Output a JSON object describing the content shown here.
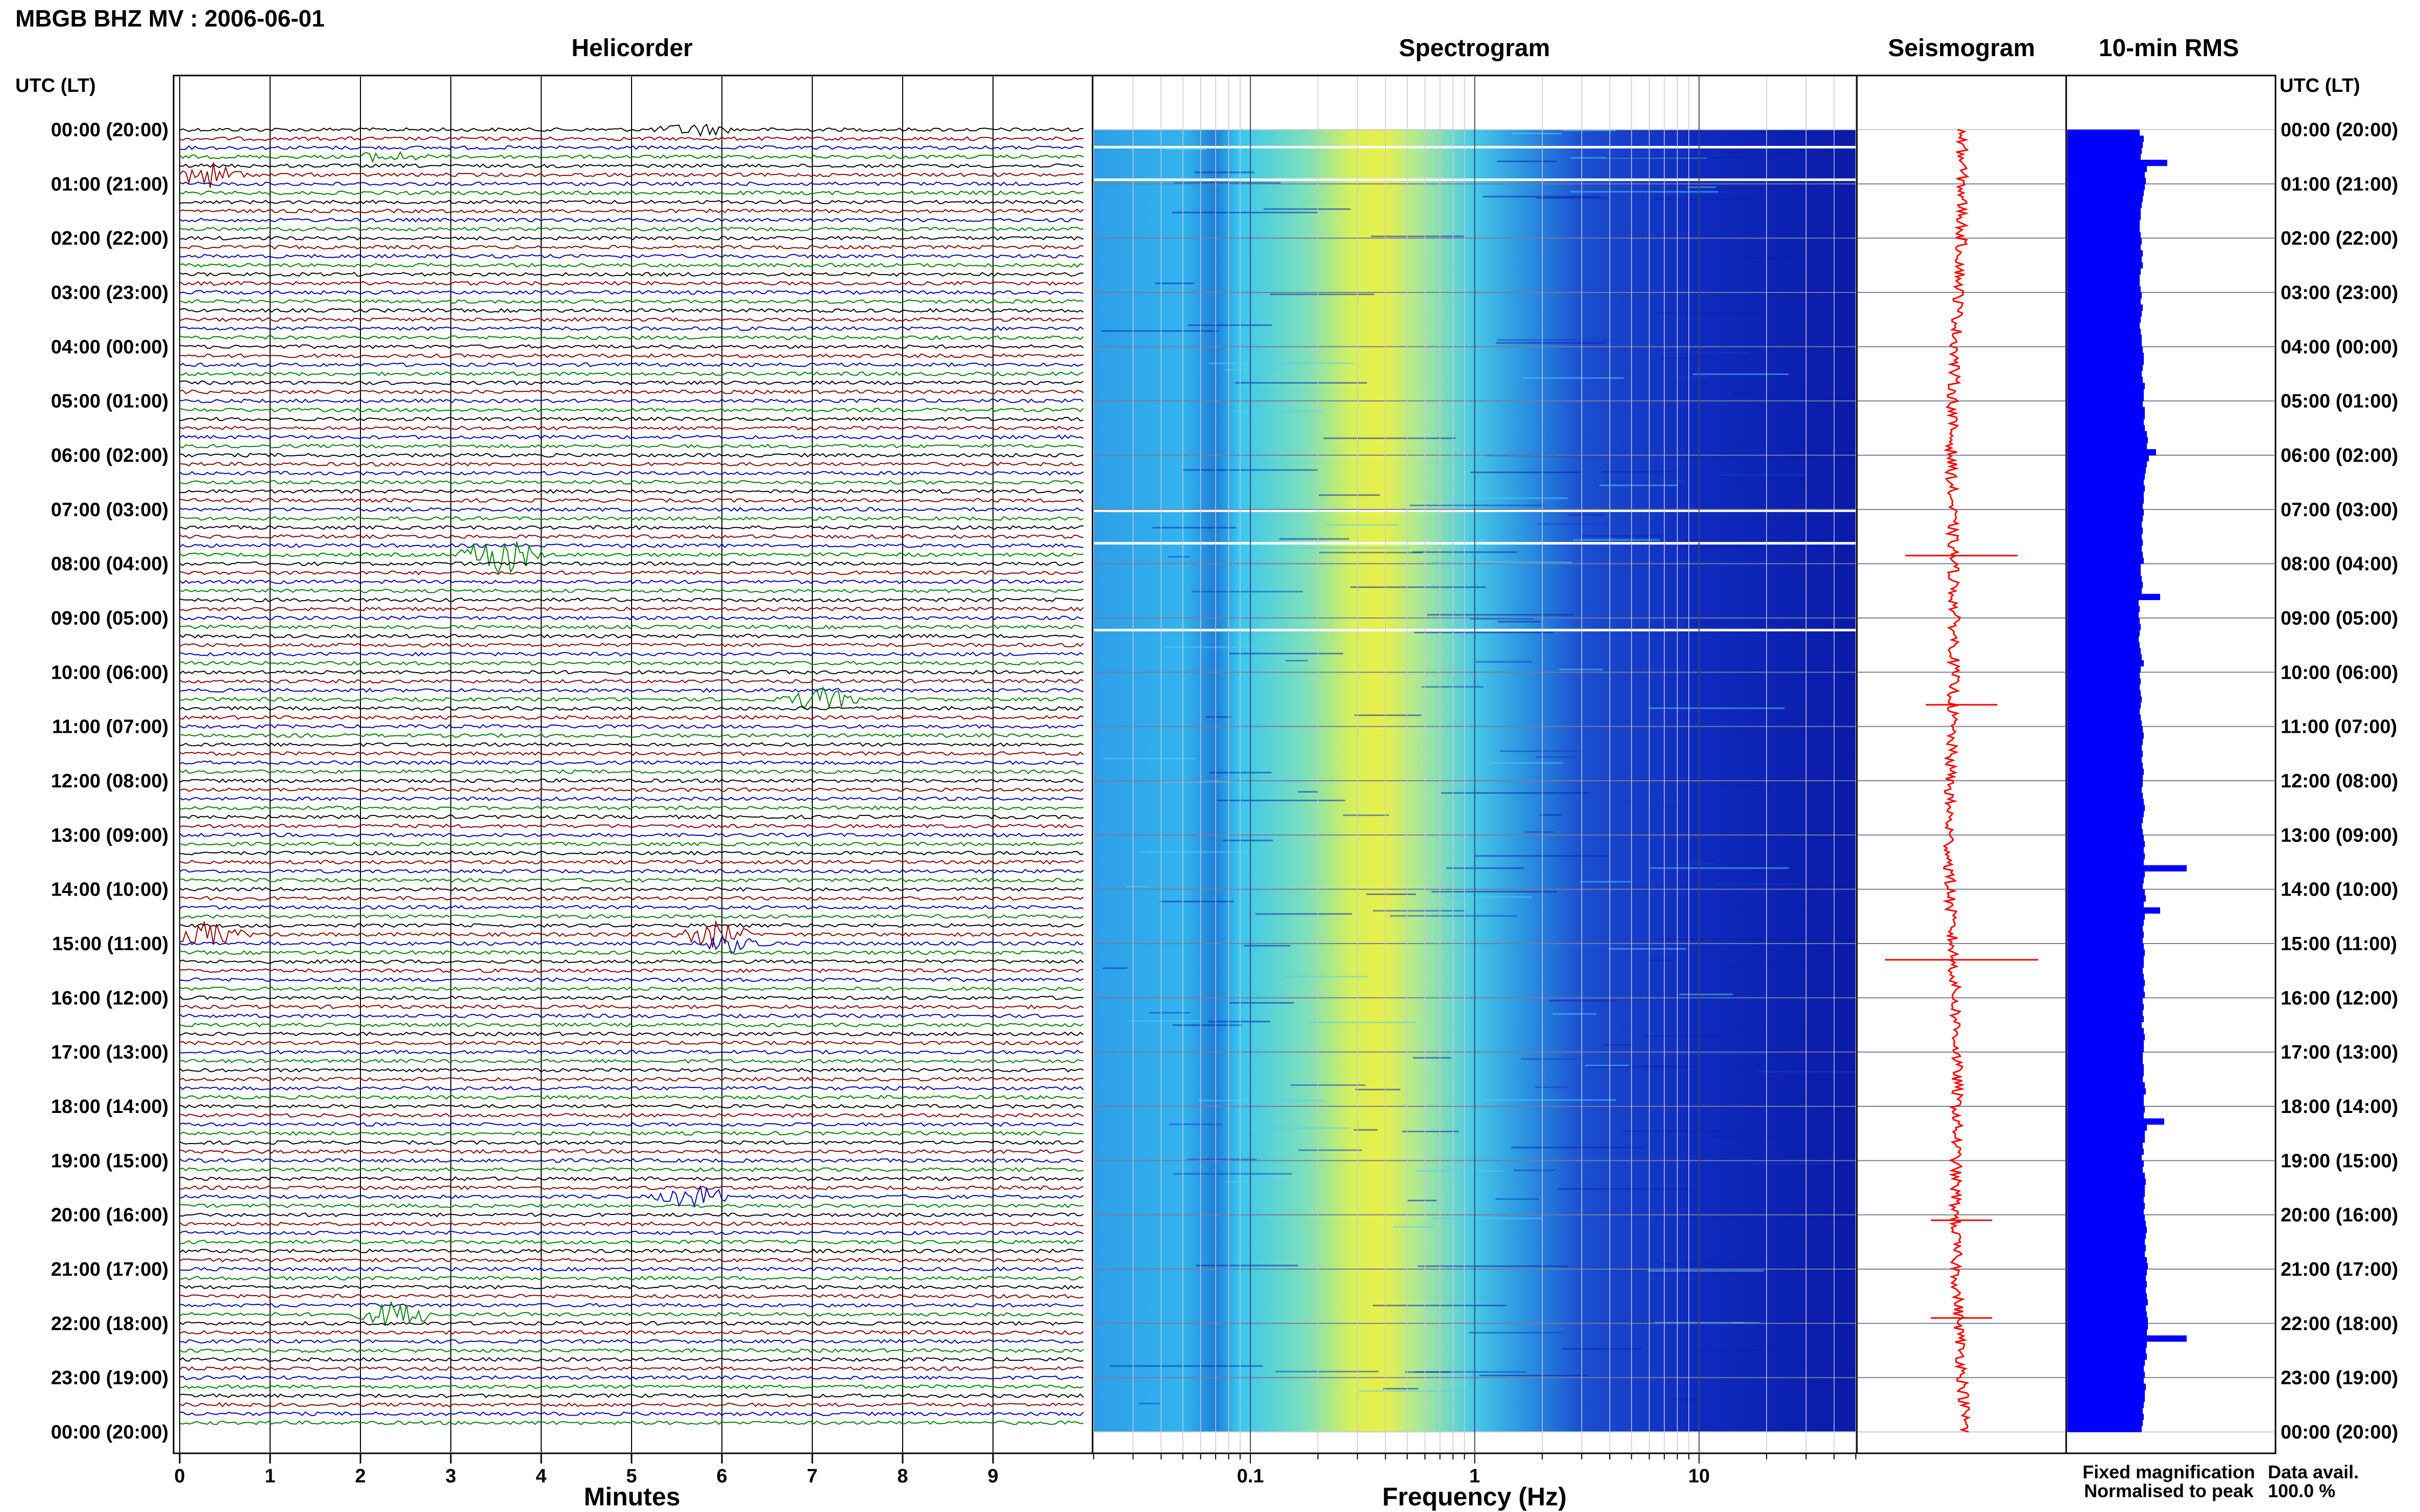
{
  "header": {
    "title": "MBGB BHZ MV : 2006-06-01"
  },
  "panels": {
    "helicorder": "Helicorder",
    "spectrogram": "Spectrogram",
    "seismogram": "Seismogram",
    "rms": "10-min RMS"
  },
  "left_axis_label": "UTC (LT)",
  "right_axis_label": "UTC (LT)",
  "time_labels": [
    "00:00 (20:00)",
    "01:00 (21:00)",
    "02:00 (22:00)",
    "03:00 (23:00)",
    "04:00 (00:00)",
    "05:00 (01:00)",
    "06:00 (02:00)",
    "07:00 (03:00)",
    "08:00 (04:00)",
    "09:00 (05:00)",
    "10:00 (06:00)",
    "11:00 (07:00)",
    "12:00 (08:00)",
    "13:00 (09:00)",
    "14:00 (10:00)",
    "15:00 (11:00)",
    "16:00 (12:00)",
    "17:00 (13:00)",
    "18:00 (14:00)",
    "19:00 (15:00)",
    "20:00 (16:00)",
    "21:00 (17:00)",
    "22:00 (18:00)",
    "23:00 (19:00)",
    "00:00 (20:00)"
  ],
  "legend": {
    "fixed": "Fixed magnification",
    "normalised": "Normalised to peak",
    "avail_label": "Data avail.",
    "avail_value": "100.0 %"
  },
  "colors": {
    "trace_cycle": [
      "#000000",
      "#8b0000",
      "#0000b4",
      "#008000"
    ],
    "rms_bar": "#0000ff",
    "seismogram": "#ff0000",
    "fixed_text": "#0000ff",
    "normalised_text": "#ff0000"
  },
  "chart_data": [
    {
      "type": "line",
      "title": "Helicorder",
      "xlabel": "Minutes",
      "x_ticks": [
        "0",
        "1",
        "2",
        "3",
        "4",
        "5",
        "6",
        "7",
        "8",
        "9"
      ],
      "xlim": [
        0,
        10
      ],
      "lines_per_hour": 6,
      "hours": 24,
      "events": [
        {
          "hour": 0,
          "line": 0,
          "minute": 5.7,
          "amp": 0.25
        },
        {
          "hour": 0,
          "line": 3,
          "minute": 2.3,
          "amp": 0.2
        },
        {
          "hour": 0,
          "line": 5,
          "minute": 0.3,
          "amp": 0.5
        },
        {
          "hour": 7,
          "line": 5,
          "minute": 3.55,
          "amp": 0.9
        },
        {
          "hour": 10,
          "line": 3,
          "minute": 7.1,
          "amp": 0.45
        },
        {
          "hour": 14,
          "line": 5,
          "minute": 0.3,
          "amp": 0.5
        },
        {
          "hour": 14,
          "line": 5,
          "minute": 5.9,
          "amp": 0.5
        },
        {
          "hour": 15,
          "line": 0,
          "minute": 6.1,
          "amp": 0.35
        },
        {
          "hour": 19,
          "line": 4,
          "minute": 5.7,
          "amp": 0.45
        },
        {
          "hour": 21,
          "line": 5,
          "minute": 2.4,
          "amp": 0.55
        }
      ]
    },
    {
      "type": "heatmap",
      "title": "Spectrogram",
      "xlabel": "Frequency (Hz)",
      "x_scale": "log",
      "xlim": [
        0.02,
        50
      ],
      "x_ticks": [
        "0.1",
        "1",
        "10"
      ]
    },
    {
      "type": "line",
      "title": "Seismogram",
      "series": [
        {
          "name": "Fixed magnification"
        },
        {
          "name": "Normalised to peak"
        }
      ]
    },
    {
      "type": "bar",
      "title": "10-min RMS",
      "orientation": "horizontal",
      "values": [
        0.71,
        0.75,
        0.74,
        0.73,
        0.72,
        0.98,
        0.78,
        0.76,
        0.77,
        0.76,
        0.75,
        0.74,
        0.73,
        0.72,
        0.72,
        0.71,
        0.71,
        0.72,
        0.73,
        0.72,
        0.74,
        0.73,
        0.74,
        0.72,
        0.71,
        0.71,
        0.72,
        0.73,
        0.72,
        0.74,
        0.73,
        0.72,
        0.71,
        0.72,
        0.73,
        0.73,
        0.74,
        0.75,
        0.75,
        0.74,
        0.73,
        0.74,
        0.76,
        0.75,
        0.75,
        0.74,
        0.76,
        0.76,
        0.75,
        0.76,
        0.78,
        0.79,
        0.78,
        0.87,
        0.8,
        0.78,
        0.77,
        0.76,
        0.75,
        0.76,
        0.75,
        0.75,
        0.74,
        0.75,
        0.74,
        0.73,
        0.74,
        0.73,
        0.74,
        0.73,
        0.74,
        0.75,
        0.72,
        0.72,
        0.73,
        0.74,
        0.73,
        0.91,
        0.7,
        0.71,
        0.7,
        0.71,
        0.72,
        0.71,
        0.7,
        0.71,
        0.72,
        0.73,
        0.75,
        0.72,
        0.71,
        0.72,
        0.71,
        0.72,
        0.73,
        0.72,
        0.71,
        0.72,
        0.73,
        0.74,
        0.75,
        0.74,
        0.73,
        0.74,
        0.73,
        0.74,
        0.75,
        0.74,
        0.74,
        0.73,
        0.74,
        0.75,
        0.76,
        0.75,
        0.74,
        0.73,
        0.74,
        0.75,
        0.76,
        0.75,
        0.76,
        0.75,
        1.17,
        0.76,
        0.75,
        0.74,
        0.76,
        0.77,
        0.75,
        0.91,
        0.76,
        0.75,
        0.74,
        0.75,
        0.74,
        0.75,
        0.76,
        0.75,
        0.75,
        0.74,
        0.75,
        0.76,
        0.75,
        0.76,
        0.74,
        0.75,
        0.74,
        0.75,
        0.73,
        0.75,
        0.76,
        0.75,
        0.75,
        0.74,
        0.74,
        0.75,
        0.75,
        0.74,
        0.76,
        0.77,
        0.75,
        0.75,
        0.76,
        0.75,
        0.95,
        0.78,
        0.76,
        0.76,
        0.74,
        0.75,
        0.73,
        0.75,
        0.74,
        0.76,
        0.77,
        0.76,
        0.76,
        0.75,
        0.76,
        0.75,
        0.76,
        0.77,
        0.78,
        0.77,
        0.76,
        0.77,
        0.76,
        0.78,
        0.79,
        0.78,
        0.77,
        0.78,
        0.77,
        0.78,
        0.79,
        0.77,
        0.78,
        0.79,
        0.79,
        0.78,
        1.17,
        0.78,
        0.77,
        0.78,
        0.76,
        0.75,
        0.76,
        0.75,
        0.77,
        0.76,
        0.76,
        0.75,
        0.74,
        0.75,
        0.74,
        0.73
      ]
    }
  ]
}
